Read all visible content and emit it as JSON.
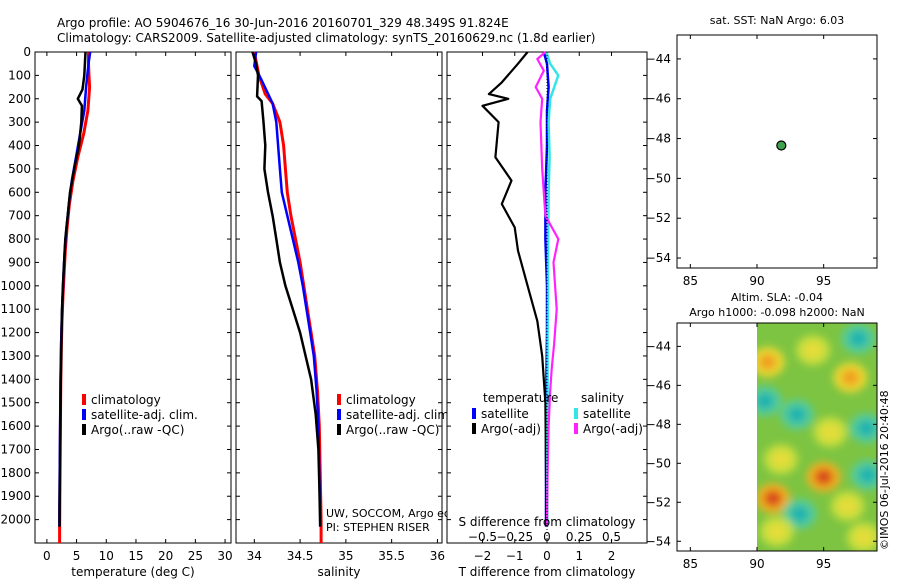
{
  "header": {
    "line1": "Argo profile: AO 5904676_16 30-Jun-2016 20160701_329 48.349S 91.824E",
    "line2": "Climatology: CARS2009. Satellite-adjusted climatology: synTS_20160629.nc (1.8d earlier)"
  },
  "colors": {
    "climatology": "#ff0000",
    "satellite_adj": "#0000ff",
    "argo": "#000000",
    "sal_satellite": "#33e5e5",
    "sal_argo": "#ff22ff",
    "marker_fill": "#3fa34d"
  },
  "chart_data": [
    {
      "type": "line",
      "id": "temperature",
      "xlabel": "temperature (deg C)",
      "xlim": [
        -2,
        31
      ],
      "ylim": [
        0,
        2100
      ],
      "y_inverted": true,
      "xticks": [
        0,
        5,
        10,
        15,
        20,
        25,
        30
      ],
      "yticks": [
        0,
        100,
        200,
        300,
        400,
        500,
        600,
        700,
        800,
        900,
        1000,
        1100,
        1200,
        1300,
        1400,
        1500,
        1600,
        1700,
        1800,
        1900,
        2000
      ],
      "legend": [
        "climatology",
        "satellite-adj. clim.",
        "Argo(..raw -QC)"
      ],
      "series": [
        {
          "name": "climatology",
          "x": [
            7.0,
            7.0,
            7.1,
            7.2,
            6.9,
            6.2,
            5.2,
            4.4,
            3.8,
            3.4,
            3.1,
            2.9,
            2.7,
            2.55,
            2.45,
            2.35,
            2.3,
            2.25,
            2.2,
            2.18,
            2.15,
            2.15
          ],
          "y": [
            0,
            50,
            100,
            150,
            250,
            350,
            450,
            550,
            650,
            750,
            850,
            950,
            1050,
            1150,
            1250,
            1400,
            1550,
            1700,
            1850,
            1950,
            2050,
            2100
          ]
        },
        {
          "name": "satellite-adj. clim.",
          "x": [
            7.3,
            7.0,
            6.8,
            6.6,
            6.3,
            5.6,
            4.9,
            4.2,
            3.7,
            3.3,
            3.0,
            2.8,
            2.65,
            2.5,
            2.4,
            2.3,
            2.25,
            2.2,
            2.15,
            2.1,
            2.1
          ],
          "y": [
            0,
            50,
            100,
            150,
            250,
            350,
            450,
            550,
            650,
            750,
            850,
            950,
            1050,
            1150,
            1250,
            1400,
            1550,
            1700,
            1850,
            1950,
            2030
          ]
        },
        {
          "name": "Argo(..raw -QC)",
          "x": [
            6.5,
            6.4,
            6.3,
            6.0,
            5.2,
            5.9,
            5.8,
            5.4,
            4.6,
            3.9,
            3.5,
            3.1,
            2.9,
            2.7,
            2.55,
            2.45,
            2.35,
            2.3,
            2.25,
            2.2,
            2.15,
            2.15
          ],
          "y": [
            0,
            50,
            100,
            160,
            200,
            230,
            300,
            400,
            500,
            600,
            700,
            800,
            900,
            1000,
            1100,
            1250,
            1400,
            1550,
            1700,
            1850,
            1950,
            2030
          ]
        }
      ]
    },
    {
      "type": "line",
      "id": "salinity",
      "xlabel": "salinity",
      "xlim": [
        33.8,
        36.05
      ],
      "ylim": [
        0,
        2100
      ],
      "y_inverted": true,
      "xticks": [
        34,
        34.5,
        35,
        35.5,
        36
      ],
      "legend": [
        "climatology",
        "satellite-adj. clim.",
        "Argo(..raw -QC)"
      ],
      "annotation": [
        "UW, SOCCOM, Argo equivalent",
        "PI: STEPHEN RISER"
      ],
      "series": [
        {
          "name": "climatology",
          "x": [
            34.0,
            34.05,
            34.12,
            34.2,
            34.28,
            34.32,
            34.34,
            34.36,
            34.4,
            34.45,
            34.5,
            34.54,
            34.58,
            34.62,
            34.66,
            34.69,
            34.71,
            34.72,
            34.73,
            34.73
          ],
          "y": [
            0,
            100,
            180,
            220,
            300,
            400,
            500,
            600,
            700,
            800,
            900,
            1000,
            1100,
            1200,
            1300,
            1450,
            1600,
            1800,
            2000,
            2100
          ]
        },
        {
          "name": "satellite-adj. clim.",
          "x": [
            34.02,
            34.0,
            34.08,
            34.2,
            34.24,
            34.26,
            34.28,
            34.3,
            34.36,
            34.42,
            34.48,
            34.53,
            34.57,
            34.61,
            34.65,
            34.68,
            34.7,
            34.71,
            34.72,
            34.72
          ],
          "y": [
            0,
            60,
            120,
            220,
            300,
            400,
            500,
            600,
            700,
            800,
            900,
            1000,
            1100,
            1200,
            1300,
            1450,
            1600,
            1800,
            1950,
            2030
          ]
        },
        {
          "name": "Argo(..raw -QC)",
          "x": [
            33.98,
            34.02,
            34.04,
            34.03,
            34.08,
            34.1,
            34.12,
            34.11,
            34.15,
            34.2,
            34.24,
            34.28,
            34.34,
            34.42,
            34.5,
            34.56,
            34.62,
            34.67,
            34.7,
            34.71,
            34.72
          ],
          "y": [
            0,
            50,
            100,
            190,
            210,
            300,
            400,
            500,
            600,
            700,
            800,
            900,
            1000,
            1100,
            1200,
            1300,
            1400,
            1550,
            1700,
            1850,
            2030
          ]
        }
      ]
    },
    {
      "type": "line",
      "id": "difference",
      "xlabel": "T difference from climatology",
      "xlabel_top": "S difference from climatology",
      "xlim": [
        -3.1,
        3.1
      ],
      "xticks": [
        -2,
        -1,
        0,
        1,
        2
      ],
      "xticks_top": [
        -0.5,
        -0.25,
        0,
        0.25,
        0.5
      ],
      "ylim": [
        0,
        2100
      ],
      "y_inverted": true,
      "legend_titles": [
        "temperature",
        "salinity"
      ],
      "legend": [
        "satellite",
        "Argo(-adj)",
        "satellite",
        "Argo(-adj)"
      ],
      "series": [
        {
          "name": "temperature satellite",
          "x": [
            -0.1,
            0.0,
            0.05,
            0.0,
            0.0,
            -0.05,
            -0.05,
            0.0,
            0.0,
            -0.02,
            -0.02,
            -0.02,
            -0.03,
            -0.03,
            -0.03,
            -0.03,
            -0.03
          ],
          "y": [
            0,
            50,
            150,
            250,
            400,
            600,
            800,
            1000,
            1200,
            1400,
            1500,
            1600,
            1700,
            1800,
            1900,
            2000,
            2030
          ]
        },
        {
          "name": "temperature Argo(-adj)",
          "x": [
            -0.6,
            -0.9,
            -1.4,
            -1.8,
            -1.2,
            -2.0,
            -1.5,
            -1.6,
            -1.1,
            -1.4,
            -1.0,
            -0.9,
            -0.6,
            -0.3,
            -0.15,
            -0.05,
            -0.03,
            -0.02
          ],
          "y": [
            0,
            50,
            130,
            180,
            200,
            230,
            300,
            450,
            550,
            650,
            750,
            850,
            1000,
            1150,
            1300,
            1500,
            1800,
            2030
          ]
        },
        {
          "name": "salinity satellite",
          "x": [
            -0.02,
            0.1,
            0.35,
            0.1,
            0.05,
            0.08,
            0.05,
            0.04,
            0.03,
            0.03,
            0.02,
            0.02,
            0.02,
            0.01,
            0.01
          ],
          "y": [
            0,
            50,
            100,
            200,
            300,
            450,
            600,
            750,
            900,
            1050,
            1200,
            1400,
            1600,
            1800,
            2030
          ]
        },
        {
          "name": "salinity Argo(-adj)",
          "x": [
            -0.05,
            -0.3,
            -0.1,
            -0.35,
            -0.15,
            -0.2,
            -0.15,
            -0.05,
            0.35,
            0.2,
            0.25,
            0.3,
            0.22,
            0.15,
            0.1,
            0.05,
            0.02,
            0.0,
            0.0
          ],
          "y": [
            0,
            30,
            80,
            150,
            200,
            300,
            500,
            700,
            800,
            900,
            1000,
            1100,
            1250,
            1350,
            1450,
            1600,
            1800,
            2000,
            2030
          ]
        }
      ]
    },
    {
      "type": "scatter",
      "id": "sst_location",
      "title": "sat. SST: NaN Argo: 6.03",
      "xlim": [
        84,
        99
      ],
      "ylim": [
        -54.5,
        -42.8
      ],
      "xticks": [
        85,
        90,
        95
      ],
      "yticks": [
        -44,
        -46,
        -48,
        -50,
        -52,
        -54
      ],
      "points": [
        {
          "x": 91.824,
          "y": -48.349
        }
      ]
    },
    {
      "type": "heatmap",
      "id": "altimetry",
      "title_lines": [
        "Altim. SLA: -0.04",
        "Argo h1000: -0.098 h2000: NaN"
      ],
      "xlim": [
        84,
        99
      ],
      "ylim": [
        -54.5,
        -42.8
      ],
      "xticks": [
        85,
        90,
        95
      ],
      "yticks": [
        -44,
        -46,
        -48,
        -50,
        -52,
        -54
      ],
      "data_xlim": [
        90,
        99
      ],
      "blobs": [
        {
          "x": 90.8,
          "y": -44.8,
          "v": 0.8
        },
        {
          "x": 94.2,
          "y": -44.2,
          "v": 0.5
        },
        {
          "x": 93.0,
          "y": -47.5,
          "v": -0.6
        },
        {
          "x": 90.6,
          "y": -46.8,
          "v": -0.5
        },
        {
          "x": 97.0,
          "y": -45.6,
          "v": 0.6
        },
        {
          "x": 97.6,
          "y": -43.6,
          "v": -0.6
        },
        {
          "x": 95.5,
          "y": -48.4,
          "v": 0.4
        },
        {
          "x": 98.2,
          "y": -48.2,
          "v": -0.5
        },
        {
          "x": 91.8,
          "y": -49.8,
          "v": 0.35
        },
        {
          "x": 95.0,
          "y": -50.7,
          "v": 1.0
        },
        {
          "x": 91.2,
          "y": -51.8,
          "v": 1.0
        },
        {
          "x": 93.2,
          "y": -52.6,
          "v": -0.55
        },
        {
          "x": 96.8,
          "y": -52.2,
          "v": 0.45
        },
        {
          "x": 98.3,
          "y": -50.6,
          "v": -0.55
        },
        {
          "x": 98.0,
          "y": -53.8,
          "v": 0.5
        },
        {
          "x": 91.5,
          "y": -53.5,
          "v": 0.3
        }
      ]
    }
  ],
  "side_label": "©IMOS 06-Jul-2016 20:40:48"
}
